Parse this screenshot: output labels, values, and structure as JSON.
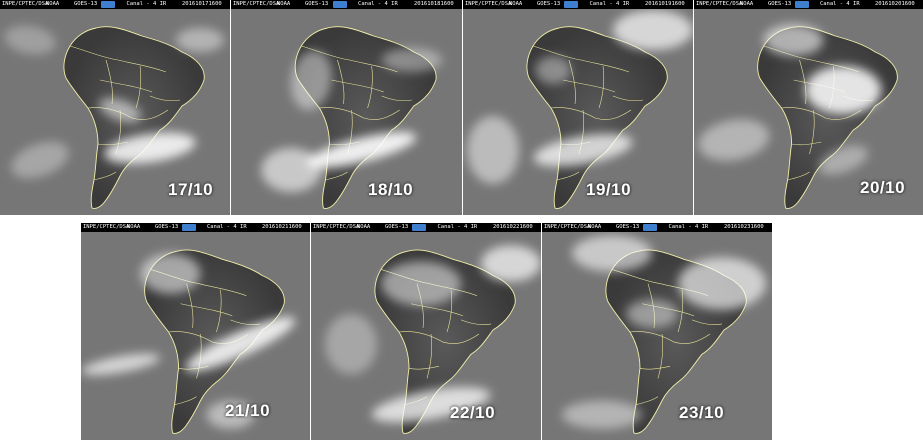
{
  "header": {
    "source": "INPE/CPTEC/DSA",
    "agency": "NOAA",
    "satellite": "GOES-13",
    "channel": "Canal - 4   IR"
  },
  "panels": [
    {
      "date": "17/10",
      "timestamp": "201610171600"
    },
    {
      "date": "18/10",
      "timestamp": "201610181600"
    },
    {
      "date": "19/10",
      "timestamp": "201610191600"
    },
    {
      "date": "20/10",
      "timestamp": "201610201600"
    },
    {
      "date": "21/10",
      "timestamp": "201610211600"
    },
    {
      "date": "22/10",
      "timestamp": "201610221600"
    },
    {
      "date": "23/10",
      "timestamp": "201610231600"
    }
  ]
}
